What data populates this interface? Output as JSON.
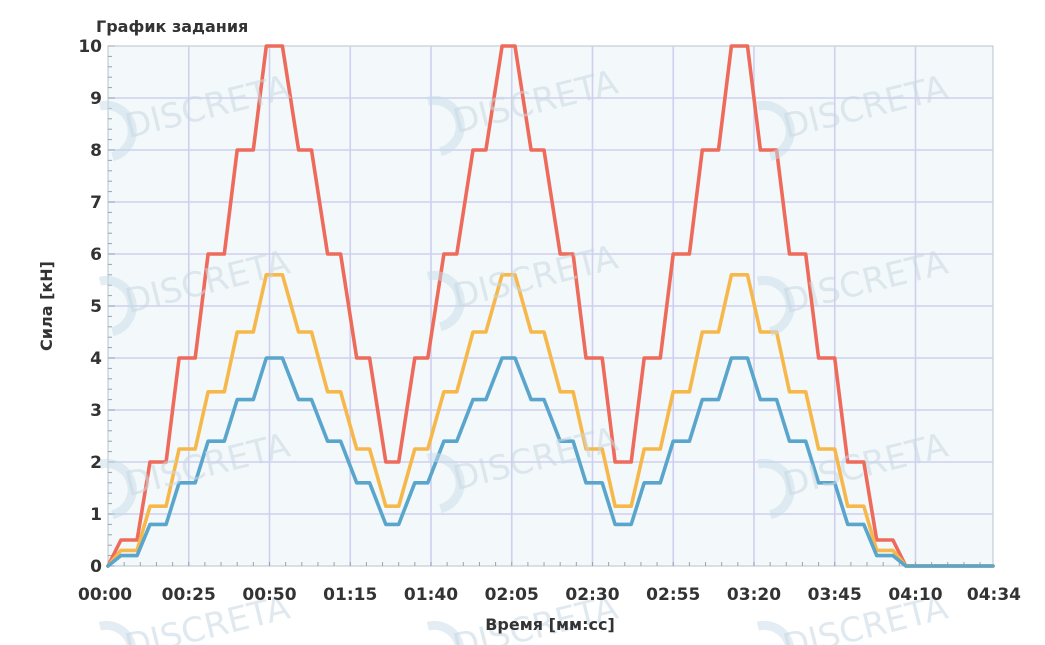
{
  "chart_data": {
    "type": "line",
    "title": "График задания",
    "xlabel": "Время [мм:сс]",
    "ylabel": "Сила [кН]",
    "x_ticks": [
      "00:00",
      "00:25",
      "00:50",
      "01:15",
      "01:40",
      "02:05",
      "02:30",
      "02:55",
      "03:20",
      "03:45",
      "04:10",
      "04:34"
    ],
    "xlim": [
      "00:00",
      "04:34"
    ],
    "ylim": [
      0,
      10
    ],
    "y_ticks": [
      0,
      1,
      2,
      3,
      4,
      5,
      6,
      7,
      8,
      9,
      10
    ],
    "grid": true,
    "x_seconds": [
      0,
      4,
      9,
      13,
      18,
      22,
      27,
      31,
      36,
      40,
      45,
      49,
      54,
      59,
      63,
      68,
      72,
      77,
      81,
      86,
      90,
      95,
      99,
      104,
      108,
      113,
      117,
      122,
      126,
      131,
      135,
      140,
      144,
      148,
      153,
      157,
      162,
      166,
      171,
      175,
      180,
      184,
      189,
      193,
      198,
      202,
      207,
      211,
      216,
      220,
      225,
      229,
      234,
      238,
      243,
      247,
      252,
      256,
      261,
      265,
      270,
      274
    ],
    "series": [
      {
        "color": "#ee6b5b",
        "values": [
          0,
          0.5,
          0.5,
          2,
          2,
          4,
          4,
          6,
          6,
          8,
          8,
          10,
          10,
          8,
          8,
          6,
          6,
          4,
          4,
          2,
          2,
          4,
          4,
          6,
          6,
          8,
          8,
          10,
          10,
          8,
          8,
          6,
          6,
          4,
          4,
          2,
          2,
          4,
          4,
          6,
          6,
          8,
          8,
          10,
          10,
          8,
          8,
          6,
          6,
          4,
          4,
          2,
          2,
          0.5,
          0.5,
          0,
          0,
          0,
          0,
          0,
          0,
          0
        ]
      },
      {
        "color": "#f7b84b",
        "values": [
          0,
          0.3,
          0.3,
          1.15,
          1.15,
          2.25,
          2.25,
          3.35,
          3.35,
          4.5,
          4.5,
          5.6,
          5.6,
          4.5,
          4.5,
          3.35,
          3.35,
          2.25,
          2.25,
          1.15,
          1.15,
          2.25,
          2.25,
          3.35,
          3.35,
          4.5,
          4.5,
          5.6,
          5.6,
          4.5,
          4.5,
          3.35,
          3.35,
          2.25,
          2.25,
          1.15,
          1.15,
          2.25,
          2.25,
          3.35,
          3.35,
          4.5,
          4.5,
          5.6,
          5.6,
          4.5,
          4.5,
          3.35,
          3.35,
          2.25,
          2.25,
          1.15,
          1.15,
          0.3,
          0.3,
          0,
          0,
          0,
          0,
          0,
          0,
          0
        ]
      },
      {
        "color": "#5aa5cc",
        "values": [
          0,
          0.2,
          0.2,
          0.8,
          0.8,
          1.6,
          1.6,
          2.4,
          2.4,
          3.2,
          3.2,
          4,
          4,
          3.2,
          3.2,
          2.4,
          2.4,
          1.6,
          1.6,
          0.8,
          0.8,
          1.6,
          1.6,
          2.4,
          2.4,
          3.2,
          3.2,
          4,
          4,
          3.2,
          3.2,
          2.4,
          2.4,
          1.6,
          1.6,
          0.8,
          0.8,
          1.6,
          1.6,
          2.4,
          2.4,
          3.2,
          3.2,
          4,
          4,
          3.2,
          3.2,
          2.4,
          2.4,
          1.6,
          1.6,
          0.8,
          0.8,
          0.2,
          0.2,
          0,
          0,
          0,
          0,
          0,
          0,
          0
        ]
      }
    ]
  },
  "watermark": "DISCRETA"
}
